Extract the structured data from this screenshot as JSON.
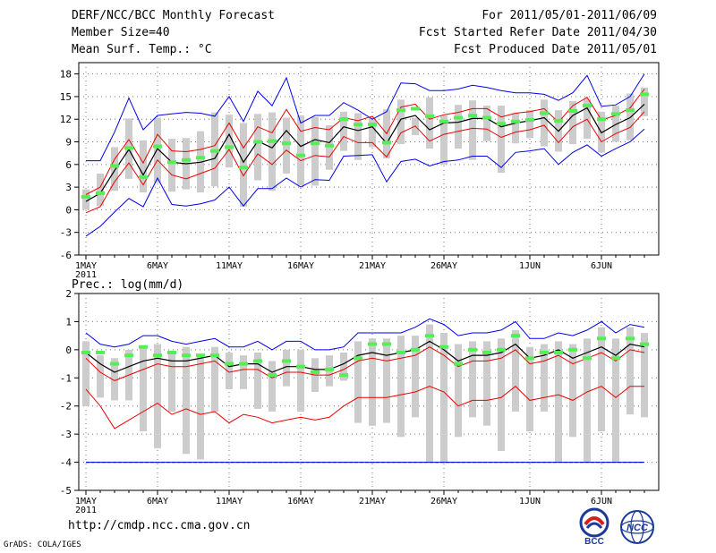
{
  "header": {
    "title": "DERF/NCC/BCC Monthly Forecast",
    "member_size": "Member Size=40",
    "variable": "Mean Surf. Temp.: °C",
    "period": "For 2011/05/01-2011/06/09",
    "started": "Fcst Started Refer Date 2011/04/30",
    "produced": "Fcst Produced Date 2011/05/01"
  },
  "footer": {
    "url": "http://cmdp.ncc.cma.gov.cn",
    "credit": "GrADS: COLA/IGES",
    "logo_left": "BCC",
    "logo_right": "NCC"
  },
  "colors": {
    "max_line": "#0000ee",
    "spread_line": "#ee0000",
    "mean_line": "#000000",
    "climate_mark": "#55ee55",
    "box": "#cccccc",
    "grid": "#777777"
  },
  "chart_data": [
    {
      "type": "box-line",
      "title": "Mean Surf. Temp.: °C",
      "ylim": [
        -6,
        19.5
      ],
      "yticks": [
        -6,
        -3,
        0,
        3,
        6,
        9,
        12,
        15,
        18
      ],
      "xticks": [
        {
          "day": 1,
          "label": "1MAY",
          "sub": "2011"
        },
        {
          "day": 6,
          "label": "6MAY"
        },
        {
          "day": 11,
          "label": "11MAY"
        },
        {
          "day": 16,
          "label": "16MAY"
        },
        {
          "day": 21,
          "label": "21MAY"
        },
        {
          "day": 26,
          "label": "26MAY"
        },
        {
          "day": 32,
          "label": "1JUN"
        },
        {
          "day": 37,
          "label": "6JUN"
        }
      ],
      "days": 40,
      "mean": [
        1.1,
        2.2,
        5.2,
        8.0,
        4.6,
        8.1,
        6.3,
        6.1,
        6.3,
        6.8,
        10.0,
        6.3,
        9.1,
        8.2,
        10.5,
        8.4,
        9.3,
        8.9,
        11.0,
        10.5,
        11.0,
        8.8,
        12.0,
        12.5,
        10.6,
        11.5,
        11.6,
        12.1,
        12.1,
        11.0,
        11.5,
        11.8,
        12.2,
        10.4,
        12.5,
        13.5,
        10.2,
        11.3,
        12.2,
        14.0
      ],
      "upper": [
        2.0,
        3.0,
        6.7,
        9.3,
        6.2,
        10.0,
        7.8,
        7.7,
        8.0,
        8.5,
        11.5,
        8.2,
        11.0,
        10.2,
        13.3,
        10.4,
        10.9,
        10.6,
        12.2,
        11.8,
        12.4,
        10.1,
        13.6,
        14.0,
        12.0,
        12.6,
        12.9,
        13.4,
        13.4,
        12.3,
        12.8,
        13.0,
        13.4,
        11.6,
        13.8,
        14.9,
        11.9,
        12.5,
        13.5,
        16.0
      ],
      "lower": [
        -0.4,
        0.4,
        3.7,
        6.2,
        3.3,
        6.6,
        4.6,
        4.1,
        4.8,
        5.5,
        8.0,
        4.5,
        7.4,
        6.0,
        7.9,
        6.5,
        7.2,
        7.0,
        9.7,
        8.9,
        8.9,
        7.0,
        10.2,
        11.1,
        9.1,
        10.0,
        10.4,
        10.8,
        10.7,
        9.6,
        10.3,
        10.6,
        11.2,
        8.9,
        11.0,
        12.0,
        9.0,
        10.1,
        10.9,
        13.0
      ],
      "max": [
        6.5,
        6.5,
        10.3,
        14.8,
        10.6,
        12.5,
        12.7,
        12.9,
        12.8,
        12.4,
        15.0,
        11.7,
        15.7,
        13.8,
        17.5,
        11.5,
        12.5,
        12.5,
        14.2,
        13.2,
        12.0,
        13.0,
        16.8,
        16.7,
        15.8,
        15.8,
        16.0,
        16.5,
        16.2,
        15.8,
        15.5,
        15.5,
        15.3,
        14.5,
        15.5,
        17.8,
        13.7,
        13.9,
        15.0,
        18.0
      ],
      "min": [
        -3.5,
        -2.2,
        -0.3,
        1.5,
        0.4,
        4.2,
        0.7,
        0.5,
        0.8,
        1.3,
        3.0,
        0.5,
        2.8,
        2.8,
        4.2,
        3.0,
        4.0,
        3.9,
        7.1,
        7.2,
        7.3,
        3.7,
        6.4,
        6.7,
        5.8,
        6.4,
        6.6,
        7.1,
        7.1,
        5.6,
        7.6,
        7.8,
        8.1,
        6.0,
        7.6,
        8.6,
        7.1,
        8.1,
        9.0,
        10.7
      ],
      "climate": [
        1.7,
        2.2,
        5.8,
        8.2,
        4.3,
        8.4,
        6.3,
        6.6,
        6.9,
        7.8,
        8.3,
        5.6,
        9.0,
        9.1,
        8.8,
        7.2,
        8.8,
        8.5,
        12.0,
        11.3,
        11.3,
        8.9,
        13.2,
        13.4,
        12.4,
        11.7,
        12.2,
        12.5,
        12.2,
        11.4,
        11.7,
        11.9,
        12.8,
        11.8,
        13.1,
        13.8,
        12.0,
        12.7,
        13.2,
        15.3
      ],
      "box_high": [
        2.7,
        4.8,
        8.3,
        12.1,
        9.2,
        12.2,
        9.4,
        9.5,
        10.4,
        12.9,
        12.6,
        11.5,
        12.7,
        12.9,
        12.2,
        12.5,
        12.3,
        11.2,
        13.0,
        12.8,
        12.2,
        13.3,
        14.6,
        12.2,
        14.9,
        12.5,
        13.9,
        14.5,
        13.8,
        13.8,
        12.8,
        13.2,
        14.6,
        13.2,
        14.4,
        14.7,
        13.0,
        13.8,
        15.4,
        16.2
      ],
      "box_low": [
        0.0,
        0.5,
        2.5,
        4.1,
        2.3,
        3.6,
        2.4,
        2.7,
        2.3,
        3.1,
        5.6,
        0.4,
        3.9,
        2.5,
        4.8,
        3.2,
        3.2,
        5.3,
        7.8,
        6.6,
        8.3,
        6.8,
        8.7,
        9.9,
        8.1,
        6.0,
        8.1,
        6.6,
        9.1,
        4.9,
        8.8,
        9.5,
        8.4,
        7.7,
        8.7,
        9.4,
        7.6,
        9.0,
        9.2,
        12.4
      ]
    },
    {
      "type": "box-line",
      "title": "Prec.: log(mm/d)",
      "ylim": [
        -5,
        2
      ],
      "yticks": [
        -5,
        -4,
        -3,
        -2,
        -1,
        0,
        1,
        2
      ],
      "xticks": [
        {
          "day": 1,
          "label": "1MAY",
          "sub": "2011"
        },
        {
          "day": 6,
          "label": "6MAY"
        },
        {
          "day": 11,
          "label": "11MAY"
        },
        {
          "day": 16,
          "label": "16MAY"
        },
        {
          "day": 21,
          "label": "21MAY"
        },
        {
          "day": 26,
          "label": "26MAY"
        },
        {
          "day": 32,
          "label": "1JUN"
        },
        {
          "day": 37,
          "label": "6JUN"
        }
      ],
      "days": 40,
      "mean": [
        -0.1,
        -0.5,
        -0.8,
        -0.6,
        -0.4,
        -0.3,
        -0.4,
        -0.4,
        -0.3,
        -0.2,
        -0.6,
        -0.5,
        -0.5,
        -0.8,
        -0.6,
        -0.6,
        -0.7,
        -0.7,
        -0.5,
        -0.2,
        -0.1,
        -0.2,
        -0.1,
        0.0,
        0.3,
        0.0,
        -0.4,
        -0.2,
        -0.2,
        -0.1,
        0.2,
        -0.3,
        -0.2,
        0.0,
        -0.3,
        -0.1,
        0.1,
        -0.2,
        0.2,
        0.1
      ],
      "upper": [
        -0.3,
        -0.8,
        -1.1,
        -0.9,
        -0.7,
        -0.5,
        -0.6,
        -0.6,
        -0.5,
        -0.4,
        -0.8,
        -0.7,
        -0.7,
        -1.0,
        -0.8,
        -0.8,
        -0.9,
        -0.9,
        -0.7,
        -0.4,
        -0.3,
        -0.4,
        -0.3,
        -0.2,
        0.1,
        -0.2,
        -0.6,
        -0.4,
        -0.4,
        -0.3,
        0.0,
        -0.5,
        -0.4,
        -0.2,
        -0.5,
        -0.3,
        -0.1,
        -0.4,
        0.0,
        -0.1
      ],
      "lower": [
        -1.4,
        -2.0,
        -2.8,
        -2.5,
        -2.2,
        -1.9,
        -2.3,
        -2.1,
        -2.3,
        -2.2,
        -2.6,
        -2.3,
        -2.4,
        -2.6,
        -2.5,
        -2.4,
        -2.5,
        -2.4,
        -2.0,
        -1.7,
        -1.7,
        -1.7,
        -1.6,
        -1.5,
        -1.3,
        -1.5,
        -2.0,
        -1.8,
        -1.8,
        -1.7,
        -1.3,
        -1.8,
        -1.7,
        -1.6,
        -1.8,
        -1.5,
        -1.3,
        -1.7,
        -1.3,
        -1.3
      ],
      "max": [
        0.6,
        0.2,
        0.1,
        0.2,
        0.5,
        0.5,
        0.3,
        0.2,
        0.3,
        0.4,
        0.1,
        0.1,
        0.3,
        0.0,
        0.3,
        0.3,
        0.0,
        0.0,
        0.1,
        0.6,
        0.6,
        0.6,
        0.6,
        0.8,
        1.1,
        0.9,
        0.5,
        0.6,
        0.6,
        0.7,
        1.0,
        0.4,
        0.4,
        0.6,
        0.5,
        0.7,
        1.0,
        0.6,
        0.9,
        0.8
      ],
      "min": [
        -4.0,
        -4.0,
        -4.0,
        -4.0,
        -4.0,
        -4.0,
        -4.0,
        -4.0,
        -4.0,
        -4.0,
        -4.0,
        -4.0,
        -4.0,
        -4.0,
        -4.0,
        -4.0,
        -4.0,
        -4.0,
        -4.0,
        -4.0,
        -4.0,
        -4.0,
        -4.0,
        -4.0,
        -4.0,
        -4.0,
        -4.0,
        -4.0,
        -4.0,
        -4.0,
        -4.0,
        -4.0,
        -4.0,
        -4.0,
        -4.0,
        -4.0,
        -4.0,
        -4.0,
        -4.0,
        -4.0
      ],
      "climate": [
        -0.1,
        -0.1,
        -0.5,
        -0.2,
        0.1,
        -0.2,
        -0.1,
        -0.2,
        -0.2,
        -0.2,
        -0.5,
        -0.5,
        -0.4,
        -0.9,
        -0.4,
        -0.6,
        -0.8,
        -0.7,
        -0.9,
        -0.3,
        0.2,
        0.2,
        -0.1,
        0.0,
        0.5,
        0.1,
        -0.5,
        0.0,
        -0.1,
        0.0,
        0.5,
        -0.3,
        -0.1,
        -0.1,
        0.0,
        -0.3,
        0.4,
        -0.3,
        0.4,
        0.2
      ],
      "box_high": [
        0.3,
        -0.2,
        -0.3,
        0.0,
        0.1,
        0.2,
        -0.1,
        0.1,
        -0.2,
        0.1,
        -0.1,
        -0.2,
        -0.1,
        -0.4,
        0.0,
        0.0,
        -0.3,
        -0.2,
        -0.1,
        0.3,
        0.4,
        0.4,
        0.5,
        0.5,
        0.9,
        0.6,
        0.2,
        0.3,
        0.3,
        0.4,
        0.7,
        0.1,
        0.2,
        0.3,
        0.2,
        0.4,
        0.8,
        0.4,
        0.8,
        0.6
      ],
      "box_low": [
        -2.0,
        -1.7,
        -1.8,
        -1.8,
        -2.9,
        -3.5,
        -2.2,
        -3.7,
        -3.9,
        -2.2,
        -1.4,
        -1.4,
        -2.1,
        -2.2,
        -1.3,
        -2.2,
        -1.5,
        -1.3,
        -1.1,
        -2.6,
        -2.7,
        -2.6,
        -3.1,
        -2.4,
        -4.0,
        -4.0,
        -3.1,
        -2.4,
        -2.7,
        -3.6,
        -2.2,
        -2.9,
        -2.2,
        -4.0,
        -3.1,
        -4.0,
        -2.9,
        -4.0,
        -2.3,
        -2.4
      ],
      "reference_line": -4.0
    }
  ]
}
